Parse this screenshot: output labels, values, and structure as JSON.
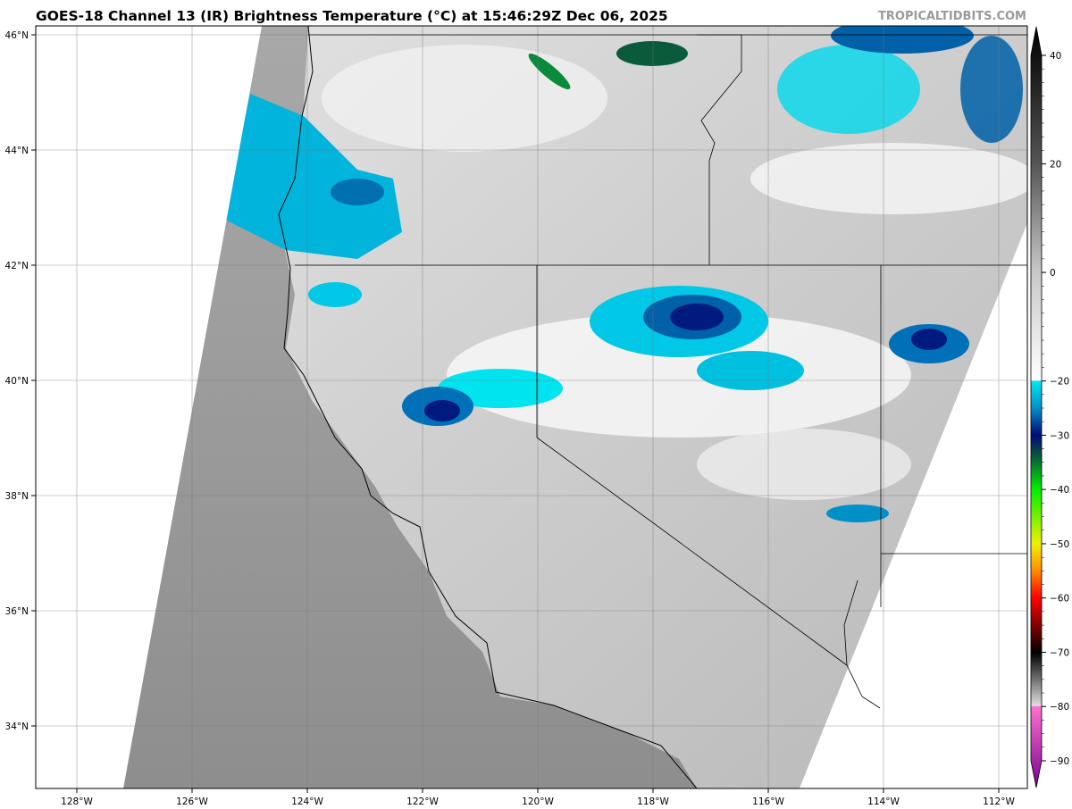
{
  "title": "GOES-18 Channel 13 (IR) Brightness Temperature (°C) at 15:46:29Z Dec 06, 2025",
  "brand": "TROPICALTIDBITS.COM",
  "map": {
    "lon_labels": [
      {
        "lon": -128,
        "label": "128°W"
      },
      {
        "lon": -126,
        "label": "126°W"
      },
      {
        "lon": -124,
        "label": "124°W"
      },
      {
        "lon": -122,
        "label": "122°W"
      },
      {
        "lon": -120,
        "label": "120°W"
      },
      {
        "lon": -118,
        "label": "118°W"
      },
      {
        "lon": -116,
        "label": "116°W"
      },
      {
        "lon": -114,
        "label": "114°W"
      },
      {
        "lon": -112,
        "label": "112°W"
      }
    ],
    "lat_labels": [
      {
        "lat": 46,
        "label": "46°N"
      },
      {
        "lat": 44,
        "label": "44°N"
      },
      {
        "lat": 42,
        "label": "42°N"
      },
      {
        "lat": 40,
        "label": "40°N"
      },
      {
        "lat": 38,
        "label": "38°N"
      },
      {
        "lat": 36,
        "label": "36°N"
      },
      {
        "lat": 34,
        "label": "34°N"
      }
    ]
  },
  "colorbar": {
    "ticks": [
      {
        "value": 40,
        "label": "40"
      },
      {
        "value": 20,
        "label": "20"
      },
      {
        "value": 0,
        "label": "0"
      },
      {
        "value": -20,
        "label": "−20"
      },
      {
        "value": -30,
        "label": "−30"
      },
      {
        "value": -40,
        "label": "−40"
      },
      {
        "value": -50,
        "label": "−50"
      },
      {
        "value": -60,
        "label": "−60"
      },
      {
        "value": -70,
        "label": "−70"
      },
      {
        "value": -80,
        "label": "−80"
      },
      {
        "value": -90,
        "label": "−90"
      }
    ],
    "stops": [
      {
        "value": 45,
        "color": "#000000"
      },
      {
        "value": 20,
        "color": "#555555"
      },
      {
        "value": 0,
        "color": "#c8c8c8"
      },
      {
        "value": -19.9,
        "color": "#ffffff"
      },
      {
        "value": -20,
        "color": "#00e8f0"
      },
      {
        "value": -25,
        "color": "#0090c8"
      },
      {
        "value": -30,
        "color": "#000a78"
      },
      {
        "value": -34,
        "color": "#0a5a3c"
      },
      {
        "value": -40,
        "color": "#00f000"
      },
      {
        "value": -50,
        "color": "#f0f000"
      },
      {
        "value": -55,
        "color": "#ff8c00"
      },
      {
        "value": -60,
        "color": "#ff0000"
      },
      {
        "value": -67,
        "color": "#500000"
      },
      {
        "value": -70,
        "color": "#000000"
      },
      {
        "value": -79.9,
        "color": "#e0e0e0"
      },
      {
        "value": -80,
        "color": "#ff70d0"
      },
      {
        "value": -95,
        "color": "#780090"
      }
    ]
  }
}
